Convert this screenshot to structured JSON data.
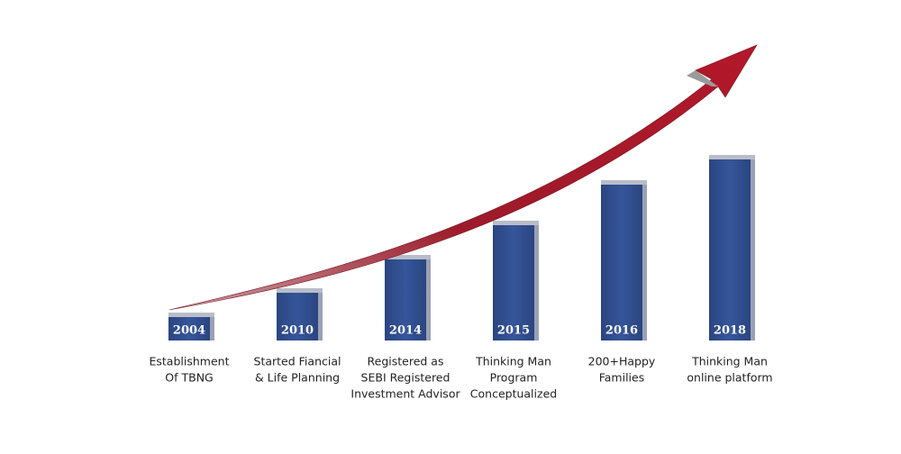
{
  "milestones": [
    {
      "year": "2004",
      "label": [
        "Establishment",
        "Of TBNG"
      ]
    },
    {
      "year": "2010",
      "label": [
        "Started Fiancial",
        "& Life Planning"
      ]
    },
    {
      "year": "2014",
      "label": [
        "Registered as",
        "SEBI Registered",
        "Investment Advisor"
      ]
    },
    {
      "year": "2015",
      "label": [
        "Thinking Man",
        "Program",
        "Conceptualized"
      ]
    },
    {
      "year": "2016",
      "label": [
        "200+Happy",
        "Families"
      ]
    },
    {
      "year": "2018",
      "label": [
        "Thinking Man",
        "online platform"
      ]
    }
  ]
}
